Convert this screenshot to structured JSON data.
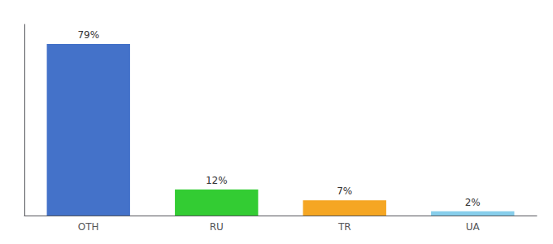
{
  "chart_data": {
    "type": "bar",
    "categories": [
      "OTH",
      "RU",
      "TR",
      "UA"
    ],
    "values": [
      79,
      12,
      7,
      2
    ],
    "value_labels": [
      "79%",
      "12%",
      "7%",
      "2%"
    ],
    "data_labels": true,
    "colors": [
      "#4472c9",
      "#33cc33",
      "#f5a623",
      "#87ceeb"
    ],
    "ylim": [
      0,
      88
    ],
    "tick_labels": "x",
    "grid": false
  }
}
